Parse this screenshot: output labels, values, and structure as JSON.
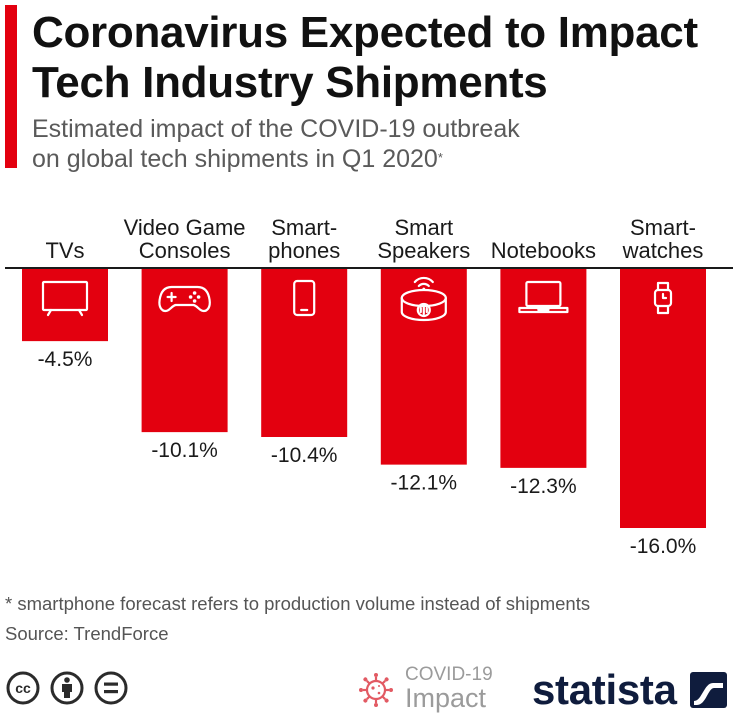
{
  "chart_data": {
    "type": "bar",
    "title_lines": [
      "Coronavirus Expected to Impact",
      "Tech Industry Shipments"
    ],
    "subtitle_lines": [
      "Estimated impact of the COVID-19 outbreak",
      "on global tech shipments in Q1 2020"
    ],
    "subtitle_footnote_mark": "*",
    "categories": [
      [
        "TVs"
      ],
      [
        "Video Game",
        "Consoles"
      ],
      [
        "Smart-",
        "phones"
      ],
      [
        "Smart",
        "Speakers"
      ],
      [
        "Notebooks"
      ],
      [
        "Smart-",
        "watches"
      ]
    ],
    "values": [
      -4.5,
      -10.1,
      -10.4,
      -12.1,
      -12.3,
      -16.0
    ],
    "value_suffix": "%",
    "ylim": [
      -16,
      0
    ],
    "grid": false,
    "icons": [
      "tv-icon",
      "gamepad-icon",
      "smartphone-icon",
      "smart-speaker-icon",
      "laptop-icon",
      "smartwatch-icon"
    ],
    "colors": {
      "bar": "#e3000f",
      "baseline": "#1a1a1a",
      "icon": "#ffffff"
    }
  },
  "footer": {
    "note": "* smartphone forecast refers to production volume instead of shipments",
    "source": "Source: TrendForce",
    "license_icons": [
      "cc-icon",
      "attribution-icon",
      "no-derivatives-icon"
    ],
    "license_cc_text": "cc",
    "covid_badge": {
      "icon": "virus-icon",
      "line1": "COVID-19",
      "line2": "Impact"
    },
    "brand": {
      "name": "statista",
      "icon": "statista-logo-icon"
    }
  },
  "colors": {
    "accent": "#e3000f",
    "title": "#111111",
    "subtitle": "#5a5a5a",
    "muted": "#9b9b9b",
    "brand": "#0f1c3d"
  }
}
